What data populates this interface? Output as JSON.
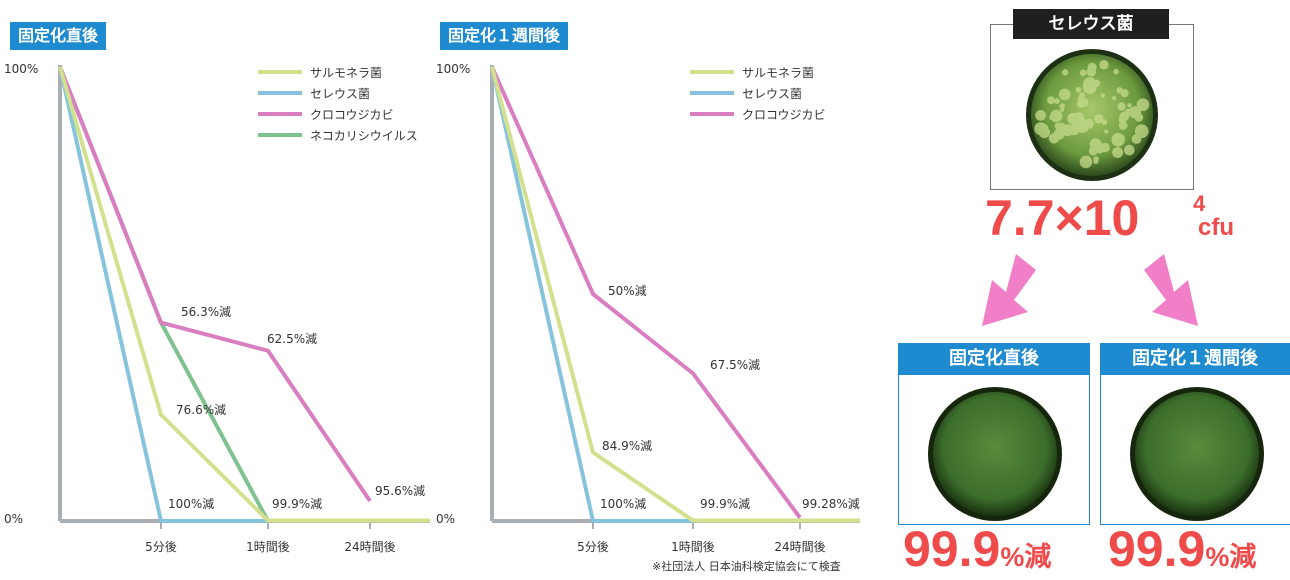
{
  "chart_data": [
    {
      "type": "line",
      "title": "固定化直後",
      "x": [
        "",
        "5分後",
        "1時間後",
        "24時間後"
      ],
      "ylim": [
        0,
        100
      ],
      "y_tick_labels": [
        "100%",
        "0%"
      ],
      "series": [
        {
          "name": "サルモネラ菌",
          "values": [
            100,
            23.4,
            0.1,
            0.1
          ],
          "color": "#d3e08e"
        },
        {
          "name": "セレウス菌",
          "values": [
            100,
            0,
            0,
            null
          ],
          "color": "#86c4de"
        },
        {
          "name": "クロコウジカビ",
          "values": [
            100,
            43.7,
            37.5,
            4.4
          ],
          "color": "#d97ec1"
        },
        {
          "name": "ネコカリシウイルス",
          "values": [
            100,
            43.7,
            0,
            null
          ],
          "color": "#7fc28f"
        }
      ],
      "annotations": [
        {
          "text": "56.3%減"
        },
        {
          "text": "62.5%減"
        },
        {
          "text": "76.6%減"
        },
        {
          "text": "95.6%減"
        },
        {
          "text": "100%減"
        },
        {
          "text": "99.9%減"
        }
      ],
      "grid": false,
      "legend": "top-right"
    },
    {
      "type": "line",
      "title": "固定化１週間後",
      "x": [
        "",
        "5分後",
        "1時間後",
        "24時間後"
      ],
      "ylim": [
        0,
        100
      ],
      "y_tick_labels": [
        "100%",
        "0%"
      ],
      "series": [
        {
          "name": "サルモネラ菌",
          "values": [
            100,
            15.1,
            0.1,
            0.1
          ],
          "color": "#d3e08e"
        },
        {
          "name": "セレウス菌",
          "values": [
            100,
            0,
            0,
            null
          ],
          "color": "#86c4de"
        },
        {
          "name": "クロコウジカビ",
          "values": [
            100,
            50,
            32.5,
            0.72
          ],
          "color": "#d97ec1"
        }
      ],
      "annotations": [
        {
          "text": "50%減"
        },
        {
          "text": "67.5%減"
        },
        {
          "text": "84.9%減"
        },
        {
          "text": "100%減"
        },
        {
          "text": "99.9%減"
        },
        {
          "text": "99.28%減"
        }
      ],
      "grid": false,
      "legend": "top-right"
    }
  ],
  "footnote": "※社団法人 日本油科検定協会にて検査",
  "panel": {
    "top_label": "セレウス菌",
    "count_base": "7.7×10",
    "count_exp": "4",
    "count_unit": "cfu",
    "left_label": "固定化直後",
    "right_label": "固定化１週間後",
    "left_result_num": "99.9",
    "left_result_unit": "%減",
    "right_result_num": "99.9",
    "right_result_unit": "%減",
    "colors": {
      "accent_red": "#f04b4b",
      "badge_blue": "#1e8ad0",
      "arrow_pink": "#f07fc8",
      "dish_green": "#3c6e2c"
    }
  }
}
